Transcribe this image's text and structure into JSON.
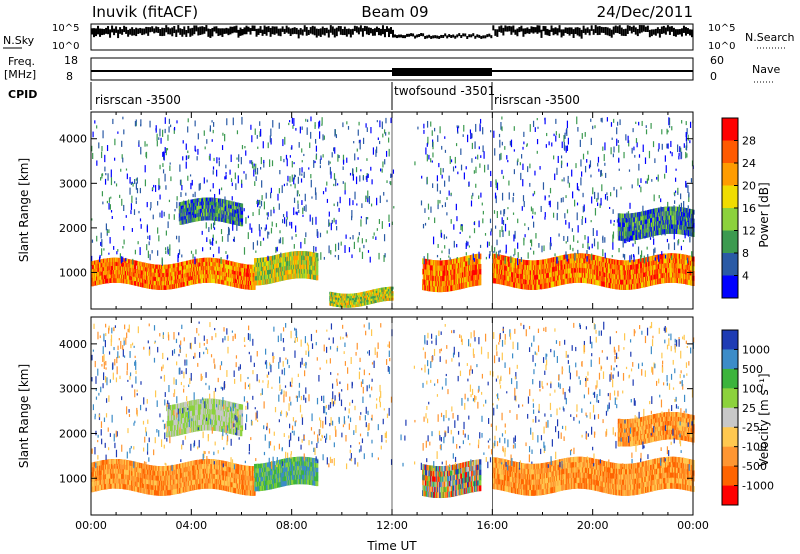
{
  "header": {
    "station": "Inuvik (fitACF)",
    "beam": "Beam 09",
    "date": "24/Dec/2011"
  },
  "strip_panels": {
    "nsky_label": "N.Sky",
    "nsky_ticks": [
      "10^5",
      "10^0"
    ],
    "nsearch_label": "N.Search",
    "nsearch_ticks": [
      "10^5",
      "10^0"
    ],
    "freq_label": "Freq.",
    "freq_unit": "[MHz]",
    "freq_ticks": [
      "18",
      "8"
    ],
    "nave_label": "Nave",
    "nave_ticks": [
      "60",
      "0"
    ],
    "cpid_label": "CPID",
    "cpid_segments": [
      {
        "label": "risrscan -3500",
        "start_h": 0,
        "end_h": 12
      },
      {
        "label": "twofsound -3501",
        "start_h": 12,
        "end_h": 16
      },
      {
        "label": "risrscan -3500",
        "start_h": 16,
        "end_h": 24
      }
    ]
  },
  "chart_data": [
    {
      "type": "heatmap",
      "name": "power",
      "ylabel": "Slant Range [km]",
      "xlim_hours": [
        0,
        24
      ],
      "ylim": [
        180,
        4600
      ],
      "yticks": [
        1000,
        2000,
        3000,
        4000
      ],
      "colorbar": {
        "label": "Power [dB]",
        "ticks": [
          "28",
          "24",
          "20",
          "16",
          "12",
          "8",
          "4"
        ],
        "colors": [
          "#ff0000",
          "#ff5a00",
          "#ff9c00",
          "#f0dc00",
          "#8cd23c",
          "#3c9a50",
          "#2a5aa5",
          "#0000ff"
        ]
      },
      "echo_bands": [
        {
          "start_h": 0.0,
          "end_h": 6.5,
          "min_km": 700,
          "max_km": 1250,
          "level": "strong"
        },
        {
          "start_h": 6.5,
          "end_h": 9.0,
          "min_km": 800,
          "max_km": 1400,
          "level": "medium"
        },
        {
          "start_h": 9.5,
          "end_h": 12.0,
          "min_km": 300,
          "max_km": 600,
          "level": "medium"
        },
        {
          "start_h": 13.2,
          "end_h": 15.5,
          "min_km": 650,
          "max_km": 1350,
          "level": "strong"
        },
        {
          "start_h": 16.0,
          "end_h": 24.0,
          "min_km": 700,
          "max_km": 1350,
          "level": "strong"
        },
        {
          "start_h": 3.5,
          "end_h": 6.0,
          "min_km": 2100,
          "max_km": 2600,
          "level": "weak"
        },
        {
          "start_h": 21.0,
          "end_h": 24.0,
          "min_km": 1800,
          "max_km": 2400,
          "level": "weak"
        }
      ]
    },
    {
      "type": "heatmap",
      "name": "velocity",
      "ylabel": "Slant Range [km]",
      "xlabel": "Time UT",
      "xlim_hours": [
        0,
        24
      ],
      "ylim": [
        180,
        4600
      ],
      "yticks": [
        1000,
        2000,
        3000,
        4000
      ],
      "xticks": [
        "00:00",
        "04:00",
        "08:00",
        "12:00",
        "16:00",
        "20:00",
        "00:00"
      ],
      "colorbar": {
        "label": "Velocity [m s⁻¹]",
        "ticks": [
          "1000",
          "500",
          "100",
          "25",
          "-25",
          "-100",
          "-500",
          "-1000"
        ],
        "colors": [
          "#1f3cb4",
          "#3c8cc8",
          "#3cb43c",
          "#8cd23c",
          "#c8c8c8",
          "#ffc850",
          "#ff9632",
          "#ff6400",
          "#ff0000"
        ]
      },
      "echo_bands": [
        {
          "start_h": 0.0,
          "end_h": 6.5,
          "min_km": 700,
          "max_km": 1350,
          "level": "negative"
        },
        {
          "start_h": 6.5,
          "end_h": 9.0,
          "min_km": 800,
          "max_km": 1400,
          "level": "positive"
        },
        {
          "start_h": 13.2,
          "end_h": 15.5,
          "min_km": 650,
          "max_km": 1350,
          "level": "mixed"
        },
        {
          "start_h": 16.0,
          "end_h": 24.0,
          "min_km": 700,
          "max_km": 1400,
          "level": "negative"
        },
        {
          "start_h": 3.0,
          "end_h": 6.0,
          "min_km": 2000,
          "max_km": 2700,
          "level": "near-zero"
        },
        {
          "start_h": 21.0,
          "end_h": 24.0,
          "min_km": 1800,
          "max_km": 2400,
          "level": "negative"
        }
      ]
    }
  ]
}
